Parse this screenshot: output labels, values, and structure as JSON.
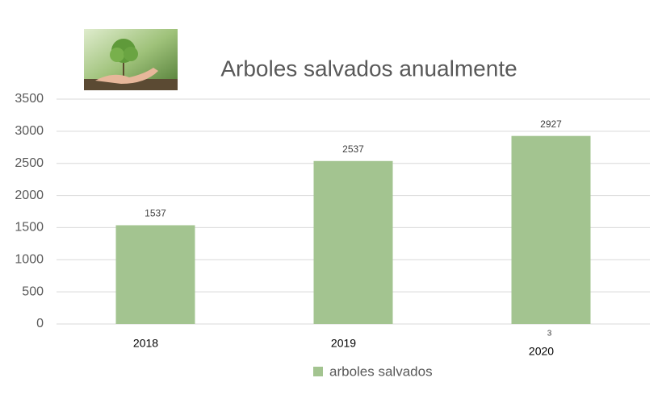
{
  "chart_data": {
    "type": "bar",
    "title": "Arboles salvados anualmente",
    "categories": [
      "2018",
      "2019",
      "2020"
    ],
    "series": [
      {
        "name": "arboles salvados",
        "color": "#a3c490",
        "values": [
          1537,
          2537,
          2927
        ]
      }
    ],
    "annotation": "3",
    "ylim": [
      0,
      3500
    ],
    "yticks": [
      0,
      500,
      1000,
      1500,
      2000,
      2500,
      3000,
      3500
    ],
    "grid": true,
    "legend": "bottom"
  }
}
